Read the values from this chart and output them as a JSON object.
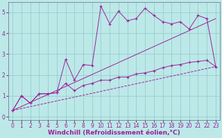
{
  "xlabel": "Windchill (Refroidissement éolien,°C)",
  "xlim": [
    -0.5,
    23.5
  ],
  "ylim": [
    -0.15,
    5.5
  ],
  "xticks": [
    0,
    1,
    2,
    3,
    4,
    5,
    6,
    7,
    8,
    9,
    10,
    11,
    12,
    13,
    14,
    15,
    16,
    17,
    18,
    19,
    20,
    21,
    22,
    23
  ],
  "yticks": [
    0,
    1,
    2,
    3,
    4,
    5
  ],
  "bg_color": "#bce8e8",
  "grid_color": "#90c8c8",
  "line_color": "#992299",
  "series1_x": [
    0,
    1,
    2,
    3,
    4,
    5,
    6,
    7,
    8,
    9,
    10,
    11,
    12,
    13,
    14,
    15,
    16,
    17,
    18,
    19,
    20,
    21,
    22,
    23
  ],
  "series1_y": [
    0.3,
    1.0,
    0.65,
    1.1,
    1.1,
    1.15,
    2.75,
    1.75,
    2.5,
    2.45,
    5.3,
    4.45,
    5.05,
    4.6,
    4.7,
    5.2,
    4.85,
    4.55,
    4.45,
    4.55,
    4.2,
    4.85,
    4.7,
    2.4
  ],
  "series2_x": [
    0,
    1,
    2,
    3,
    4,
    5,
    6,
    7,
    8,
    9,
    10,
    11,
    12,
    13,
    14,
    15,
    16,
    17,
    18,
    19,
    20,
    21,
    22,
    23
  ],
  "series2_y": [
    0.3,
    1.0,
    0.65,
    1.1,
    1.1,
    1.15,
    1.6,
    1.25,
    1.5,
    1.6,
    1.75,
    1.75,
    1.9,
    1.9,
    2.05,
    2.1,
    2.2,
    2.35,
    2.45,
    2.5,
    2.6,
    2.65,
    2.7,
    2.4
  ],
  "series3_x": [
    0,
    23
  ],
  "series3_y": [
    0.3,
    4.7
  ],
  "series4_x": [
    0,
    23
  ],
  "series4_y": [
    0.3,
    2.4
  ],
  "xlabel_fontsize": 6.5,
  "tick_fontsize": 5.5
}
